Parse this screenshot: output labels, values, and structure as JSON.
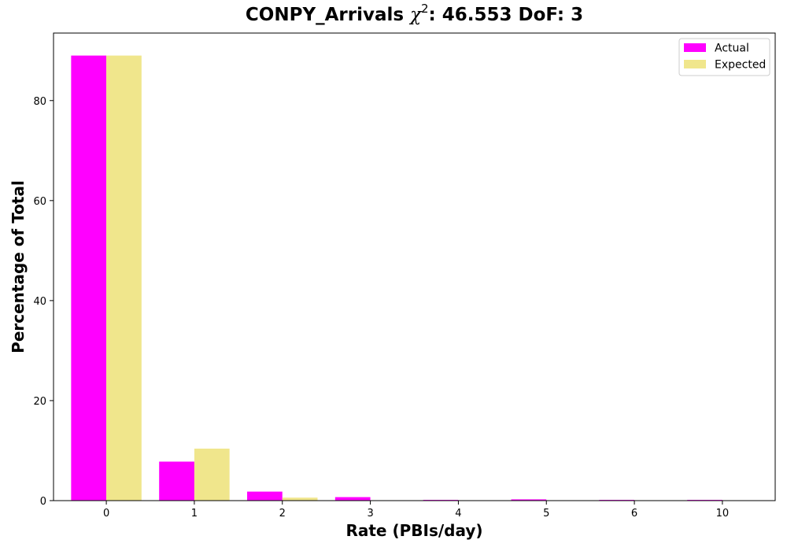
{
  "chart_data": {
    "type": "bar",
    "title": {
      "prefix": "CONPY_Arrivals ",
      "symbol": "χ",
      "superscript": "2",
      "suffix": ": 46.553 DoF: 3"
    },
    "xlabel": "Rate (PBIs/day)",
    "ylabel": "Percentage of Total",
    "categories": [
      "0",
      "1",
      "2",
      "3",
      "4",
      "5",
      "6",
      "10"
    ],
    "ylim": [
      0,
      93.5
    ],
    "yticks": [
      0,
      20,
      40,
      60,
      80
    ],
    "grid": false,
    "legend_position": "upper-right",
    "series": [
      {
        "name": "Actual",
        "color": "#ff00ff",
        "values": [
          89.0,
          7.8,
          1.8,
          0.7,
          0.15,
          0.25,
          0.15,
          0.15
        ]
      },
      {
        "name": "Expected",
        "color": "#f0e68c",
        "values": [
          89.0,
          10.4,
          0.6,
          0.0,
          0.0,
          0.0,
          0.0,
          0.0
        ]
      }
    ]
  }
}
